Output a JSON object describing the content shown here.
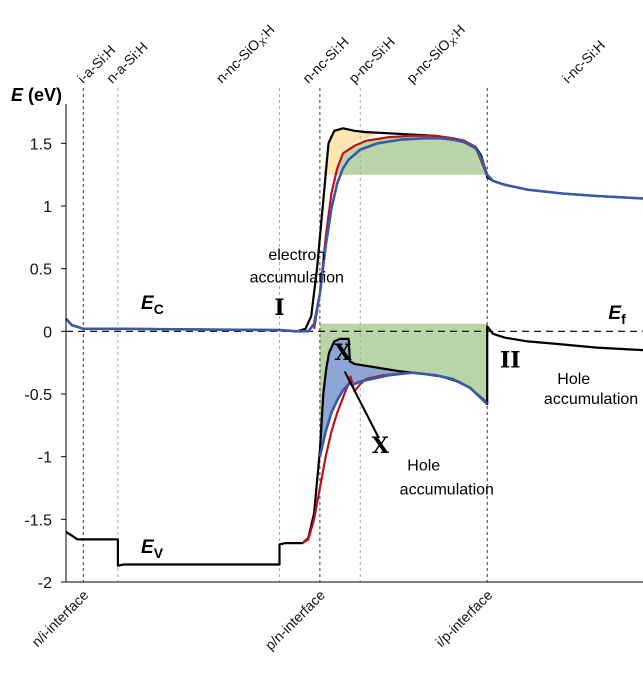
{
  "chart_data": {
    "type": "line",
    "ylabel": "E (eV)",
    "ylabel_italic_part": "E",
    "ylabel_unit": "(eV)",
    "ylim": [
      -2,
      1.75
    ],
    "xlim": [
      0,
      100
    ],
    "yticks": [
      {
        "value": 1.5,
        "label": "1.5"
      },
      {
        "value": 1,
        "label": "1"
      },
      {
        "value": 0.5,
        "label": "0.5"
      },
      {
        "value": 0,
        "label": "0"
      },
      {
        "value": -0.5,
        "label": "-0.5"
      },
      {
        "value": -1,
        "label": "-1"
      },
      {
        "value": -1.5,
        "label": "-1.5"
      },
      {
        "value": -2,
        "label": "-2"
      }
    ],
    "layers": [
      {
        "label": "i-a-Si:H",
        "x": 3
      },
      {
        "label": "n-a-Si:H",
        "x": 8
      },
      {
        "label": "n-nc-SiOX:H",
        "x": 27
      },
      {
        "label": "n-nc-Si:H",
        "x": 42
      },
      {
        "label": "p-nc-Si:H",
        "x": 50
      },
      {
        "label": "p-nc-SiOX:H",
        "x": 60
      },
      {
        "label": "i-nc-Si:H",
        "x": 87
      }
    ],
    "boundaries": [
      {
        "x": 3,
        "style": "dark"
      },
      {
        "x": 9,
        "style": "grey"
      },
      {
        "x": 37,
        "style": "grey"
      },
      {
        "x": 44,
        "style": "dark"
      },
      {
        "x": 51,
        "style": "grey"
      },
      {
        "x": 73,
        "style": "dark"
      }
    ],
    "interfaces": [
      {
        "label": "n/i-interface",
        "x": 3
      },
      {
        "label": "p/n-interface",
        "x": 44
      },
      {
        "label": "i/p-interface",
        "x": 73
      }
    ],
    "fermi_level": 0,
    "series": [
      {
        "name": "",
        "color": "#000000",
        "points": [
          [
            0,
            0.1
          ],
          [
            1,
            0.05
          ],
          [
            3,
            0.02
          ],
          [
            9,
            0.02
          ],
          [
            37,
            0.01
          ],
          [
            40,
            0.0
          ],
          [
            41.5,
            0.02
          ],
          [
            42.5,
            0.12
          ],
          [
            43.5,
            0.5
          ],
          [
            44.5,
            1.0
          ],
          [
            45.5,
            1.5
          ],
          [
            46.5,
            1.6
          ],
          [
            48,
            1.62
          ],
          [
            50,
            1.6
          ],
          [
            52,
            1.59
          ],
          [
            56,
            1.58
          ],
          [
            60,
            1.57
          ],
          [
            64,
            1.56
          ],
          [
            67,
            1.54
          ],
          [
            69,
            1.52
          ],
          [
            71,
            1.47
          ],
          [
            72,
            1.4
          ],
          [
            72.5,
            1.32
          ],
          [
            73,
            1.23
          ],
          [
            74,
            1.2
          ],
          [
            76,
            1.17
          ],
          [
            80,
            1.13
          ],
          [
            86,
            1.1
          ],
          [
            92,
            1.08
          ],
          [
            100,
            1.06
          ]
        ]
      },
      {
        "name": "",
        "color": "#c0101a",
        "points": [
          [
            43,
            0.02
          ],
          [
            44,
            0.3
          ],
          [
            45,
            0.75
          ],
          [
            46,
            1.1
          ],
          [
            47,
            1.3
          ],
          [
            48,
            1.42
          ],
          [
            50,
            1.48
          ],
          [
            52,
            1.52
          ],
          [
            56,
            1.55
          ],
          [
            60,
            1.56
          ],
          [
            64,
            1.56
          ],
          [
            67,
            1.54
          ],
          [
            69,
            1.52
          ],
          [
            71,
            1.47
          ],
          [
            73,
            1.24
          ]
        ]
      },
      {
        "name": "",
        "color": "#3a5aa8",
        "points": [
          [
            0,
            0.1
          ],
          [
            1,
            0.05
          ],
          [
            3,
            0.02
          ],
          [
            9,
            0.02
          ],
          [
            37,
            0.01
          ],
          [
            40,
            0.0
          ],
          [
            42,
            0.0
          ],
          [
            43,
            0.06
          ],
          [
            44,
            0.3
          ],
          [
            45,
            0.68
          ],
          [
            46,
            0.98
          ],
          [
            47,
            1.18
          ],
          [
            48,
            1.3
          ],
          [
            49,
            1.37
          ],
          [
            51,
            1.45
          ],
          [
            54,
            1.5
          ],
          [
            58,
            1.53
          ],
          [
            62,
            1.54
          ],
          [
            65,
            1.54
          ],
          [
            67,
            1.53
          ],
          [
            69,
            1.51
          ],
          [
            71,
            1.46
          ],
          [
            72,
            1.38
          ],
          [
            73,
            1.25
          ],
          [
            74,
            1.2
          ],
          [
            76,
            1.17
          ],
          [
            80,
            1.13
          ],
          [
            86,
            1.1
          ],
          [
            92,
            1.08
          ],
          [
            100,
            1.06
          ]
        ]
      },
      {
        "name": "",
        "color": "#000000",
        "points": [
          [
            0,
            -1.6
          ],
          [
            1,
            -1.63
          ],
          [
            2,
            -1.66
          ],
          [
            9,
            -1.66
          ],
          [
            9,
            -1.87
          ],
          [
            10,
            -1.86
          ],
          [
            37,
            -1.86
          ],
          [
            37,
            -1.7
          ],
          [
            38,
            -1.69
          ],
          [
            41,
            -1.69
          ],
          [
            42,
            -1.65
          ],
          [
            43,
            -1.45
          ],
          [
            44,
            -0.95
          ],
          [
            44.6,
            -0.5
          ],
          [
            45.1,
            -0.3
          ],
          [
            45.6,
            -0.17
          ],
          [
            46.5,
            -0.08
          ],
          [
            47.5,
            -0.06
          ],
          [
            49,
            -0.06
          ],
          [
            49.2,
            -0.24
          ],
          [
            50,
            -0.26
          ],
          [
            54,
            -0.29
          ],
          [
            58,
            -0.32
          ],
          [
            62,
            -0.34
          ],
          [
            65,
            -0.36
          ],
          [
            68,
            -0.4
          ],
          [
            70,
            -0.45
          ],
          [
            71.5,
            -0.51
          ],
          [
            72.5,
            -0.55
          ],
          [
            73,
            -0.58
          ],
          [
            73,
            0.04
          ],
          [
            74,
            -0.02
          ],
          [
            76,
            -0.05
          ],
          [
            80,
            -0.08
          ],
          [
            85,
            -0.1
          ],
          [
            92,
            -0.13
          ],
          [
            100,
            -0.15
          ]
        ]
      },
      {
        "name": "",
        "color": "#c0101a",
        "points": [
          [
            41,
            -1.69
          ],
          [
            42,
            -1.66
          ],
          [
            43,
            -1.5
          ],
          [
            44,
            -1.25
          ],
          [
            45,
            -1.0
          ],
          [
            46,
            -0.8
          ],
          [
            47,
            -0.65
          ],
          [
            48,
            -0.53
          ],
          [
            48.5,
            -0.47
          ],
          [
            49,
            -0.42
          ],
          [
            49.3,
            -0.36
          ],
          [
            50,
            -0.48
          ],
          [
            51,
            -0.42
          ],
          [
            52,
            -0.38
          ],
          [
            55,
            -0.35
          ],
          [
            60,
            -0.33
          ],
          [
            64,
            -0.35
          ],
          [
            67,
            -0.38
          ],
          [
            70,
            -0.45
          ],
          [
            73,
            -0.58
          ]
        ]
      },
      {
        "name": "",
        "color": "#3a5aa8",
        "points": [
          [
            44,
            -1.0
          ],
          [
            45,
            -0.8
          ],
          [
            46,
            -0.65
          ],
          [
            47,
            -0.55
          ],
          [
            48,
            -0.47
          ],
          [
            49,
            -0.42
          ],
          [
            50,
            -0.42
          ],
          [
            51,
            -0.4
          ],
          [
            53,
            -0.38
          ],
          [
            56,
            -0.35
          ],
          [
            60,
            -0.33
          ],
          [
            64,
            -0.35
          ],
          [
            67,
            -0.38
          ],
          [
            70,
            -0.45
          ],
          [
            73,
            -0.58
          ]
        ]
      }
    ],
    "shaded_regions": [
      {
        "name": "orange-area",
        "color": "#fde6b0",
        "points": [
          [
            44.5,
            1.25
          ],
          [
            45.5,
            1.5
          ],
          [
            46.5,
            1.6
          ],
          [
            48,
            1.62
          ],
          [
            50,
            1.6
          ],
          [
            52,
            1.59
          ],
          [
            54,
            1.57
          ],
          [
            52,
            1.54
          ],
          [
            50,
            1.5
          ],
          [
            48,
            1.42
          ],
          [
            47,
            1.3
          ],
          [
            46.3,
            1.25
          ]
        ]
      },
      {
        "name": "green-upper-area",
        "color": "#b9d4a6",
        "points": [
          [
            46.3,
            1.25
          ],
          [
            47,
            1.3
          ],
          [
            48,
            1.42
          ],
          [
            50,
            1.48
          ],
          [
            52,
            1.52
          ],
          [
            56,
            1.55
          ],
          [
            60,
            1.56
          ],
          [
            64,
            1.56
          ],
          [
            67,
            1.54
          ],
          [
            69,
            1.52
          ],
          [
            71,
            1.47
          ],
          [
            72,
            1.4
          ],
          [
            72.5,
            1.32
          ],
          [
            73,
            1.25
          ]
        ]
      },
      {
        "name": "green-lower-area",
        "color": "#b9d4a6",
        "points": [
          [
            44,
            0.06
          ],
          [
            73,
            0.06
          ],
          [
            73,
            -0.58
          ],
          [
            70,
            -0.45
          ],
          [
            67,
            -0.4
          ],
          [
            64,
            -0.35
          ],
          [
            60,
            -0.33
          ],
          [
            56,
            -0.33
          ],
          [
            52,
            -0.32
          ],
          [
            49.2,
            -0.25
          ],
          [
            49,
            -0.06
          ],
          [
            47.5,
            -0.06
          ],
          [
            46.5,
            -0.08
          ],
          [
            45.6,
            -0.17
          ],
          [
            45.1,
            -0.3
          ],
          [
            44.6,
            -0.5
          ],
          [
            44,
            -0.95
          ]
        ]
      },
      {
        "name": "blue-area",
        "color": "#8da6d6",
        "points": [
          [
            42.5,
            -1.6
          ],
          [
            43,
            -1.45
          ],
          [
            44,
            -0.95
          ],
          [
            44.6,
            -0.5
          ],
          [
            45.1,
            -0.3
          ],
          [
            45.6,
            -0.17
          ],
          [
            46.5,
            -0.08
          ],
          [
            47.5,
            -0.06
          ],
          [
            49,
            -0.06
          ],
          [
            49.2,
            -0.24
          ],
          [
            50,
            -0.26
          ],
          [
            54,
            -0.29
          ],
          [
            58,
            -0.32
          ],
          [
            60,
            -0.33
          ],
          [
            56,
            -0.35
          ],
          [
            53,
            -0.38
          ],
          [
            51,
            -0.4
          ],
          [
            50,
            -0.42
          ],
          [
            49,
            -0.42
          ],
          [
            48,
            -0.47
          ],
          [
            47,
            -0.55
          ],
          [
            46,
            -0.65
          ],
          [
            45,
            -0.8
          ],
          [
            44,
            -1.0
          ],
          [
            43,
            -1.4
          ]
        ]
      }
    ],
    "annotations": [
      {
        "text": "electron",
        "x": 40,
        "y": 0.57
      },
      {
        "text": "accumulation",
        "x": 40,
        "y": 0.39
      },
      {
        "text": "I",
        "x": 37,
        "y": 0.13,
        "style": "roman"
      },
      {
        "text": "II",
        "x": 77,
        "y": -0.29,
        "style": "roman"
      },
      {
        "text": "Hole",
        "x": 88,
        "y": -0.42
      },
      {
        "text": "accumulation",
        "x": 91,
        "y": -0.58
      },
      {
        "text": "X",
        "x": 48,
        "y": -0.23,
        "style": "roman"
      },
      {
        "text": "X",
        "x": 54.5,
        "y": -0.97,
        "style": "roman"
      },
      {
        "text": "Hole",
        "x": 62,
        "y": -1.11
      },
      {
        "text": "accumulation",
        "x": 66,
        "y": -1.3
      }
    ],
    "band_labels": [
      {
        "main": "E",
        "sub": "C",
        "x": 13,
        "y": 0.18
      },
      {
        "main": "E",
        "sub": "V",
        "x": 13,
        "y": -1.77
      },
      {
        "main": "E",
        "sub": "f",
        "x": 94,
        "y": 0.1
      }
    ]
  }
}
